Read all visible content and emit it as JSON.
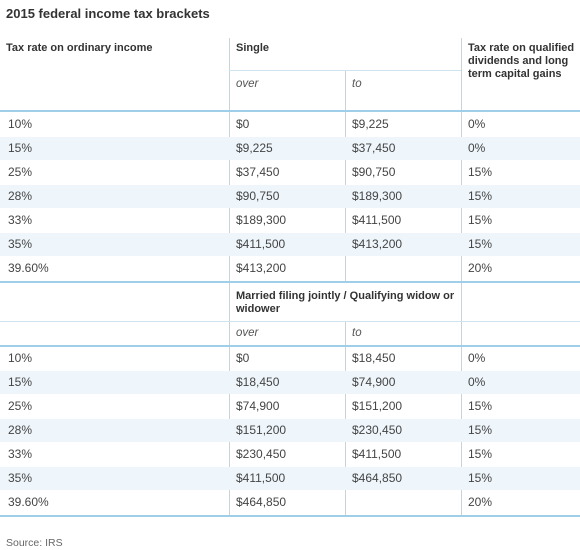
{
  "title": "2015 federal income tax brackets",
  "headers": {
    "rate": "Tax rate on ordinary income",
    "single": "Single",
    "capital": "Tax rate on qualified dividends and long term capital gains",
    "married": "Married filing jointly / Qualifying widow or widower",
    "over": "over",
    "to": "to"
  },
  "single_rows": [
    {
      "rate": "10%",
      "over": "$0",
      "to": "$9,225",
      "cap": "0%"
    },
    {
      "rate": "15%",
      "over": "$9,225",
      "to": "$37,450",
      "cap": "0%"
    },
    {
      "rate": "25%",
      "over": "$37,450",
      "to": "$90,750",
      "cap": "15%"
    },
    {
      "rate": "28%",
      "over": "$90,750",
      "to": "$189,300",
      "cap": "15%"
    },
    {
      "rate": "33%",
      "over": "$189,300",
      "to": "$411,500",
      "cap": "15%"
    },
    {
      "rate": "35%",
      "over": "$411,500",
      "to": "$413,200",
      "cap": "15%"
    },
    {
      "rate": "39.60%",
      "over": "$413,200",
      "to": "",
      "cap": "20%"
    }
  ],
  "married_rows": [
    {
      "rate": "10%",
      "over": "$0",
      "to": "$18,450",
      "cap": "0%"
    },
    {
      "rate": "15%",
      "over": "$18,450",
      "to": "$74,900",
      "cap": "0%"
    },
    {
      "rate": "25%",
      "over": "$74,900",
      "to": "$151,200",
      "cap": "15%"
    },
    {
      "rate": "28%",
      "over": "$151,200",
      "to": "$230,450",
      "cap": "15%"
    },
    {
      "rate": "33%",
      "over": "$230,450",
      "to": "$411,500",
      "cap": "15%"
    },
    {
      "rate": "35%",
      "over": "$411,500",
      "to": "$464,850",
      "cap": "15%"
    },
    {
      "rate": "39.60%",
      "over": "$464,850",
      "to": "",
      "cap": "20%"
    }
  ],
  "source": "Source: IRS"
}
